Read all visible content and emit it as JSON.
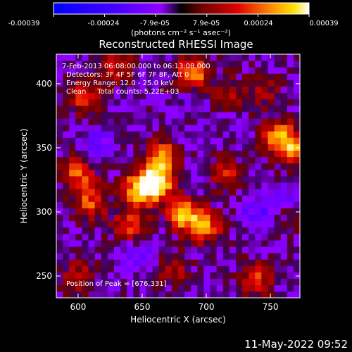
{
  "chart_data": {
    "type": "heatmap",
    "title": "Reconstructed RHESSI Image",
    "xlabel": "Heliocentric X (arcsec)",
    "ylabel": "Heliocentric Y (arcsec)",
    "xlim": [
      583,
      773
    ],
    "ylim": [
      233,
      423
    ],
    "x_ticks": [
      600,
      650,
      700,
      750
    ],
    "y_ticks": [
      250,
      300,
      350,
      400
    ],
    "colorbar": {
      "ticks": [
        "-0.00039",
        "-0.00024",
        "-7.9e-05",
        "7.9e-05",
        "0.00024",
        "0.00039"
      ],
      "unit_label": "(photons cm⁻² s⁻¹ asec⁻²)",
      "range": [
        -0.00039,
        0.00039
      ]
    },
    "info_lines": [
      "7-Feb-2013 06:08:00.000 to 06:13:08.000",
      "Detectors: 3F 4F 5F 6F 7F 8F, Att 0",
      "Energy Range: 12.0 - 25.0 keV",
      "Clean     Total counts: 5.22E+03"
    ],
    "peak_label": "Position of Peak = [676,331]",
    "peak": [
      676,
      331
    ],
    "hot_spots": [
      {
        "x": 662,
        "y": 323,
        "value": 0.00039
      },
      {
        "x": 648,
        "y": 318,
        "value": 0.00036
      },
      {
        "x": 665,
        "y": 343,
        "value": 0.0003
      },
      {
        "x": 683,
        "y": 298,
        "value": 0.00033
      },
      {
        "x": 700,
        "y": 288,
        "value": 0.00026
      },
      {
        "x": 690,
        "y": 408,
        "value": 0.00031
      },
      {
        "x": 768,
        "y": 350,
        "value": 0.0003
      },
      {
        "x": 755,
        "y": 360,
        "value": 0.00024
      },
      {
        "x": 600,
        "y": 330,
        "value": 0.00024
      },
      {
        "x": 610,
        "y": 308,
        "value": 0.00022
      },
      {
        "x": 605,
        "y": 388,
        "value": 0.0002
      },
      {
        "x": 630,
        "y": 415,
        "value": 0.00018
      },
      {
        "x": 740,
        "y": 248,
        "value": 0.0002
      },
      {
        "x": 600,
        "y": 250,
        "value": 0.00016
      },
      {
        "x": 770,
        "y": 300,
        "value": 0.00015
      },
      {
        "x": 718,
        "y": 392,
        "value": 0.00014
      },
      {
        "x": 640,
        "y": 290,
        "value": 0.00022
      },
      {
        "x": 715,
        "y": 330,
        "value": 0.00018
      },
      {
        "x": 745,
        "y": 395,
        "value": 0.00012
      },
      {
        "x": 675,
        "y": 255,
        "value": 0.00014
      }
    ],
    "cold_spots": [
      {
        "x": 650,
        "y": 265,
        "value": -0.0001
      },
      {
        "x": 740,
        "y": 300,
        "value": -0.00012
      },
      {
        "x": 615,
        "y": 355,
        "value": -8e-05
      },
      {
        "x": 765,
        "y": 310,
        "value": -0.00012
      },
      {
        "x": 690,
        "y": 390,
        "value": -6e-05
      }
    ]
  },
  "footer": {
    "timestamp": "11-May-2022 09:52"
  }
}
